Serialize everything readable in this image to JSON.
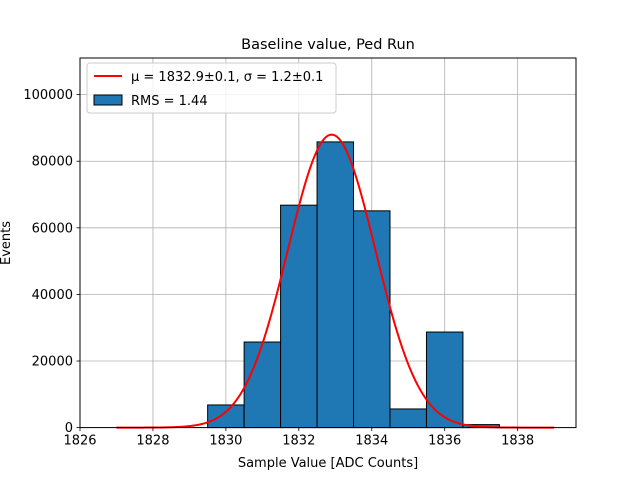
{
  "chart_data": {
    "type": "bar",
    "title": "Baseline value, Ped Run",
    "xlabel": "Sample Value [ADC Counts]",
    "ylabel": "Events",
    "xlim": [
      1826,
      1839.6
    ],
    "ylim": [
      0,
      111000
    ],
    "xticks": [
      1826,
      1828,
      1830,
      1832,
      1834,
      1836,
      1838
    ],
    "yticks": [
      0,
      20000,
      40000,
      60000,
      80000,
      100000
    ],
    "grid": true,
    "legend_position": "upper-left",
    "histogram": {
      "name": "RMS = 1.44",
      "color": "#1f77b4",
      "edge_color": "#000000",
      "bins": [
        {
          "x0": 1826.5,
          "x1": 1827.5,
          "count": 0
        },
        {
          "x0": 1827.5,
          "x1": 1828.5,
          "count": 0
        },
        {
          "x0": 1828.5,
          "x1": 1829.5,
          "count": 0
        },
        {
          "x0": 1829.5,
          "x1": 1830.5,
          "count": 6800
        },
        {
          "x0": 1830.5,
          "x1": 1831.5,
          "count": 25700
        },
        {
          "x0": 1831.5,
          "x1": 1832.5,
          "count": 66800
        },
        {
          "x0": 1832.5,
          "x1": 1833.5,
          "count": 85800
        },
        {
          "x0": 1833.5,
          "x1": 1834.5,
          "count": 65100
        },
        {
          "x0": 1834.5,
          "x1": 1835.5,
          "count": 5600
        },
        {
          "x0": 1835.5,
          "x1": 1836.5,
          "count": 28700
        },
        {
          "x0": 1836.5,
          "x1": 1837.5,
          "count": 900
        },
        {
          "x0": 1837.5,
          "x1": 1838.5,
          "count": 0
        }
      ]
    },
    "fit": {
      "name": "μ = 1832.9±0.1, σ = 1.2±0.1",
      "color": "#ff0000",
      "amplitude": 88000,
      "mu": 1832.9,
      "sigma": 1.2,
      "x_range": [
        1827,
        1839
      ]
    }
  }
}
